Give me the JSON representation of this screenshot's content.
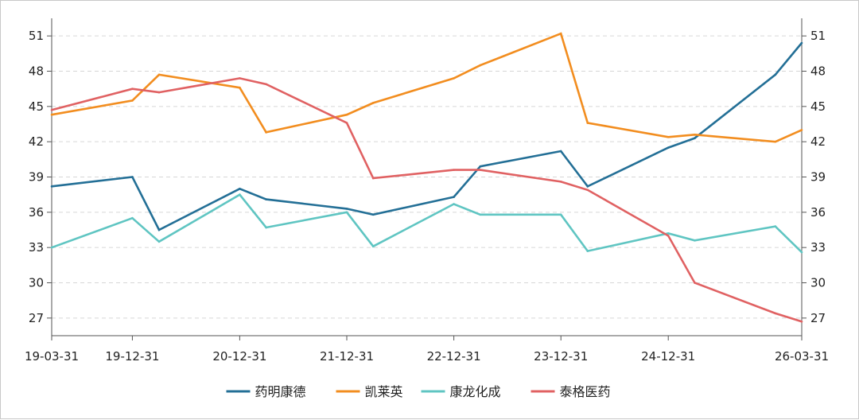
{
  "chart_data": {
    "type": "line",
    "title": "",
    "xlabel": "",
    "ylabel": "",
    "x_ticks": [
      "19-03-31",
      "19-12-31",
      "20-12-31",
      "21-12-31",
      "22-12-31",
      "23-12-31",
      "24-12-31",
      "26-03-31"
    ],
    "y_ticks": [
      27,
      30,
      33,
      36,
      39,
      42,
      45,
      48,
      51
    ],
    "ylim": [
      25.5,
      52.5
    ],
    "xlim": [
      "2019-03-31",
      "2026-03-31"
    ],
    "grid": "horizontal dashed",
    "legend": "bottom-center",
    "dual_y_axis": true,
    "series": [
      {
        "name": "药明康德",
        "color": "#236f96",
        "points": [
          [
            "2019-03-31",
            38.2
          ],
          [
            "2019-12-31",
            39.0
          ],
          [
            "2020-03-31",
            34.5
          ],
          [
            "2020-12-31",
            38.0
          ],
          [
            "2021-03-31",
            37.1
          ],
          [
            "2021-12-31",
            36.3
          ],
          [
            "2022-03-31",
            35.8
          ],
          [
            "2022-12-31",
            37.3
          ],
          [
            "2023-03-31",
            39.9
          ],
          [
            "2023-12-31",
            41.2
          ],
          [
            "2024-03-31",
            38.2
          ],
          [
            "2024-12-31",
            41.5
          ],
          [
            "2025-03-31",
            42.3
          ],
          [
            "2025-12-31",
            47.7
          ],
          [
            "2026-03-31",
            50.4
          ]
        ]
      },
      {
        "name": "凯莱英",
        "color": "#f28d1f",
        "points": [
          [
            "2019-03-31",
            44.3
          ],
          [
            "2019-12-31",
            45.5
          ],
          [
            "2020-03-31",
            47.7
          ],
          [
            "2020-12-31",
            46.6
          ],
          [
            "2021-03-31",
            42.8
          ],
          [
            "2021-12-31",
            44.3
          ],
          [
            "2022-03-31",
            45.3
          ],
          [
            "2022-12-31",
            47.4
          ],
          [
            "2023-03-31",
            48.5
          ],
          [
            "2023-12-31",
            51.2
          ],
          [
            "2024-03-31",
            43.6
          ],
          [
            "2024-12-31",
            42.4
          ],
          [
            "2025-03-31",
            42.6
          ],
          [
            "2025-12-31",
            42.0
          ],
          [
            "2026-03-31",
            43.0
          ]
        ]
      },
      {
        "name": "康龙化成",
        "color": "#5fc5c2",
        "points": [
          [
            "2019-03-31",
            33.0
          ],
          [
            "2019-12-31",
            35.5
          ],
          [
            "2020-03-31",
            33.5
          ],
          [
            "2020-12-31",
            37.5
          ],
          [
            "2021-03-31",
            34.7
          ],
          [
            "2021-12-31",
            36.0
          ],
          [
            "2022-03-31",
            33.1
          ],
          [
            "2022-12-31",
            36.7
          ],
          [
            "2023-03-31",
            35.8
          ],
          [
            "2023-12-31",
            35.8
          ],
          [
            "2024-03-31",
            32.7
          ],
          [
            "2024-12-31",
            34.2
          ],
          [
            "2025-03-31",
            33.6
          ],
          [
            "2025-12-31",
            34.8
          ],
          [
            "2026-03-31",
            32.6
          ]
        ]
      },
      {
        "name": "泰格医药",
        "color": "#e06162",
        "points": [
          [
            "2019-03-31",
            44.7
          ],
          [
            "2019-12-31",
            46.5
          ],
          [
            "2020-03-31",
            46.2
          ],
          [
            "2020-12-31",
            47.4
          ],
          [
            "2021-03-31",
            46.9
          ],
          [
            "2021-12-31",
            43.6
          ],
          [
            "2022-03-31",
            38.9
          ],
          [
            "2022-12-31",
            39.6
          ],
          [
            "2023-03-31",
            39.6
          ],
          [
            "2023-12-31",
            38.6
          ],
          [
            "2024-03-31",
            37.9
          ],
          [
            "2024-12-31",
            34.0
          ],
          [
            "2025-03-31",
            30.0
          ],
          [
            "2025-12-31",
            27.4
          ],
          [
            "2026-03-31",
            26.7
          ]
        ]
      }
    ]
  }
}
